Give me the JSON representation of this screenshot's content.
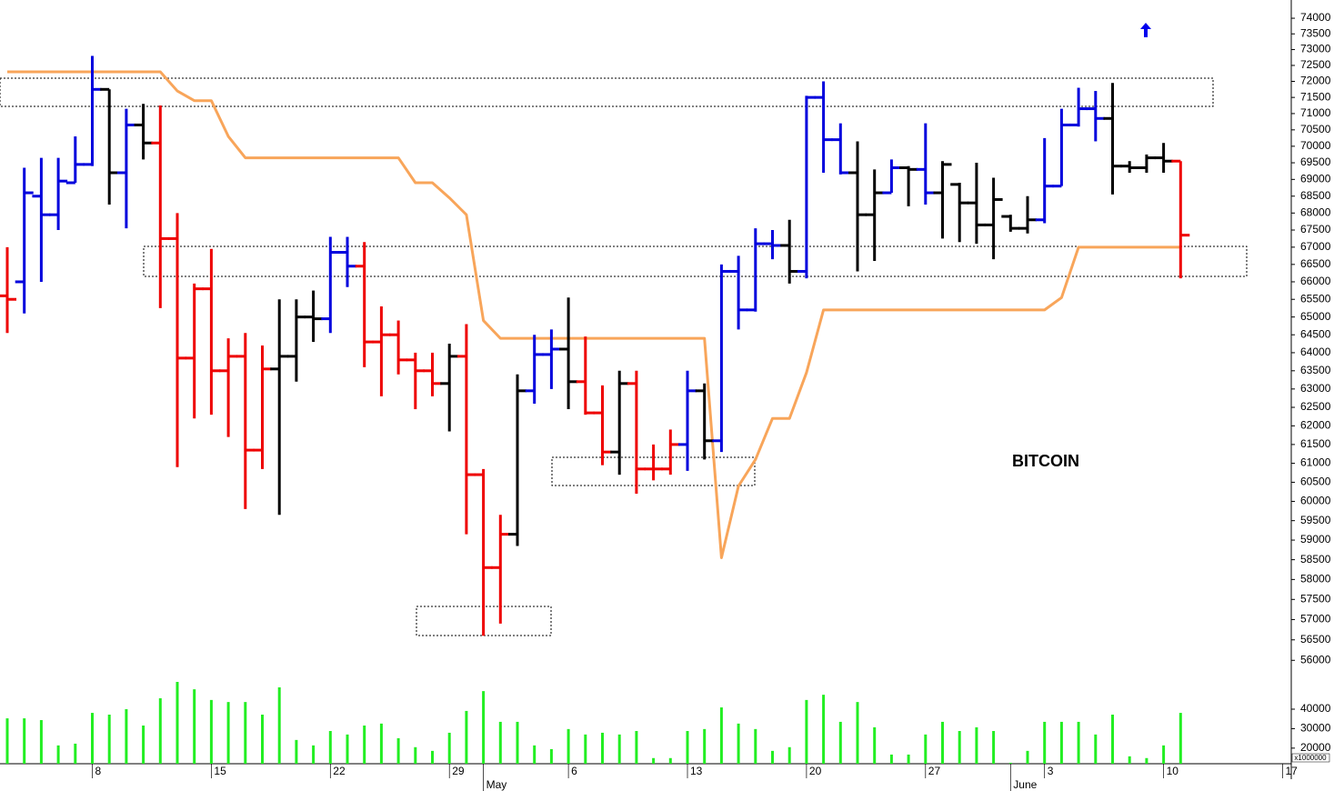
{
  "chart_data": {
    "type": "ohlc",
    "annotation": "BITCOIN",
    "volume_unit": "x1000000",
    "log_scale": true,
    "ylim": [
      55500,
      74500
    ],
    "yticks": [
      56000,
      56500,
      57000,
      57500,
      58000,
      58500,
      59000,
      59500,
      60000,
      60500,
      61000,
      61500,
      62000,
      62500,
      63000,
      63500,
      64000,
      64500,
      65000,
      65500,
      66000,
      66500,
      67000,
      67500,
      68000,
      68500,
      69000,
      69500,
      70000,
      70500,
      71000,
      71500,
      72000,
      72500,
      73000,
      73500,
      74000
    ],
    "categories": [
      null,
      null,
      null,
      null,
      null,
      "8",
      null,
      null,
      null,
      null,
      null,
      null,
      "15",
      null,
      null,
      null,
      null,
      null,
      null,
      "22",
      null,
      null,
      null,
      null,
      null,
      null,
      "29",
      null,
      "May",
      null,
      null,
      null,
      null,
      "6",
      null,
      null,
      null,
      null,
      null,
      null,
      "13",
      null,
      null,
      null,
      null,
      null,
      null,
      "20",
      null,
      null,
      null,
      null,
      null,
      null,
      "27",
      null,
      null,
      null,
      null,
      "June",
      null,
      "3",
      null,
      null,
      null,
      null,
      null,
      null,
      "10",
      null,
      null,
      null,
      null,
      null,
      null,
      "17"
    ],
    "ohlc": {
      "open": [
        65600,
        66000,
        68500,
        67950,
        68900,
        69450,
        71750,
        69200,
        70650,
        70100,
        67250,
        63850,
        65800,
        63500,
        63900,
        61350,
        63550,
        63900,
        65000,
        64950,
        66850,
        66450,
        64300,
        64500,
        63800,
        63500,
        63150,
        63900,
        60700,
        58300,
        59150,
        62950,
        63950,
        64100,
        63200,
        62350,
        61300,
        63150,
        60850,
        60850,
        61500,
        62950,
        61600,
        66300,
        65200,
        67100,
        67050,
        66300,
        71500,
        70200,
        69200,
        67950,
        68600,
        69350,
        69300,
        68600,
        68850,
        68300,
        67650,
        67900,
        67550,
        67800,
        68800,
        70650,
        71150,
        70850,
        69400,
        69350,
        69650,
        69550,
        null,
        null,
        null,
        null,
        null,
        null
      ],
      "high": [
        67000,
        69350,
        69650,
        69650,
        70300,
        72800,
        71750,
        71150,
        71300,
        71250,
        68000,
        65950,
        66950,
        64400,
        64550,
        64200,
        65500,
        65500,
        65750,
        67300,
        67300,
        67150,
        65300,
        64900,
        64000,
        64000,
        64250,
        64800,
        60850,
        59650,
        63400,
        64500,
        64650,
        65550,
        64450,
        63100,
        63500,
        63500,
        61500,
        61900,
        63500,
        63150,
        66500,
        66750,
        67550,
        67500,
        67800,
        71550,
        72000,
        70700,
        70150,
        69300,
        69600,
        69400,
        70700,
        69550,
        68900,
        69500,
        69050,
        67950,
        68500,
        70250,
        71150,
        71800,
        71700,
        71950,
        69550,
        69750,
        70100,
        69550,
        null,
        null,
        null,
        null,
        null,
        null
      ],
      "low": [
        64550,
        65100,
        66000,
        67500,
        68900,
        69400,
        68250,
        67550,
        69600,
        65250,
        60900,
        62200,
        62300,
        61700,
        59800,
        60850,
        59650,
        63200,
        64300,
        64550,
        65850,
        63600,
        62800,
        63400,
        62450,
        62800,
        61850,
        59150,
        56600,
        56900,
        58850,
        62600,
        63000,
        62450,
        62300,
        60950,
        60700,
        60200,
        60550,
        60700,
        60800,
        61100,
        61300,
        64650,
        65150,
        66650,
        65950,
        66100,
        69200,
        69150,
        66300,
        66600,
        68600,
        68200,
        68250,
        67250,
        67150,
        67100,
        66650,
        67450,
        67400,
        67700,
        68800,
        70600,
        70150,
        68550,
        69200,
        69200,
        69200,
        66100,
        null,
        null,
        null,
        null,
        null,
        null
      ],
      "close": [
        65500,
        68600,
        67950,
        68950,
        69450,
        71750,
        69200,
        70650,
        70100,
        67250,
        63850,
        65800,
        63500,
        63900,
        61350,
        63550,
        63900,
        65000,
        64950,
        66850,
        66450,
        64300,
        64500,
        63800,
        63500,
        63150,
        63900,
        60700,
        58300,
        59150,
        62950,
        63950,
        64100,
        63200,
        62350,
        61300,
        63150,
        60850,
        60850,
        61500,
        62950,
        61600,
        66300,
        65200,
        67100,
        67050,
        66300,
        71500,
        70200,
        69200,
        67950,
        68600,
        69350,
        69300,
        68600,
        69450,
        68300,
        67650,
        68400,
        67550,
        67800,
        68800,
        70650,
        71150,
        70850,
        69400,
        69350,
        69650,
        69550,
        67350,
        null,
        null,
        null,
        null,
        null,
        null
      ],
      "colors": [
        "#ee0000",
        "#0000dd",
        "#0000dd",
        "#0000dd",
        "#0000dd",
        "#0000dd",
        "#000000",
        "#0000dd",
        "#000000",
        "#ee0000",
        "#ee0000",
        "#ee0000",
        "#ee0000",
        "#ee0000",
        "#ee0000",
        "#ee0000",
        "#000000",
        "#000000",
        "#000000",
        "#0000dd",
        "#0000dd",
        "#ee0000",
        "#ee0000",
        "#ee0000",
        "#ee0000",
        "#ee0000",
        "#000000",
        "#ee0000",
        "#ee0000",
        "#ee0000",
        "#000000",
        "#0000dd",
        "#0000dd",
        "#000000",
        "#ee0000",
        "#ee0000",
        "#000000",
        "#ee0000",
        "#ee0000",
        "#ee0000",
        "#0000dd",
        "#000000",
        "#0000dd",
        "#0000dd",
        "#0000dd",
        "#0000dd",
        "#000000",
        "#0000dd",
        "#0000dd",
        "#0000dd",
        "#000000",
        "#000000",
        "#0000dd",
        "#000000",
        "#0000dd",
        "#000000",
        "#000000",
        "#000000",
        "#000000",
        "#000000",
        "#000000",
        "#0000dd",
        "#0000dd",
        "#0000dd",
        "#0000dd",
        "#000000",
        "#000000",
        "#000000",
        "#000000",
        "#ee0000",
        null,
        null,
        null,
        null,
        null,
        null
      ]
    },
    "stop_line": {
      "color": "#f8a55a",
      "values": [
        72300,
        72300,
        72300,
        72300,
        72300,
        72300,
        72300,
        72300,
        72300,
        72300,
        71700,
        71400,
        71400,
        70300,
        69650,
        69650,
        69650,
        69650,
        69650,
        69650,
        69650,
        69650,
        69650,
        69650,
        68900,
        68900,
        68450,
        67950,
        64900,
        64400,
        64400,
        64400,
        64400,
        64400,
        64400,
        64400,
        64400,
        64400,
        64400,
        64400,
        64400,
        64400,
        58550,
        60400,
        61100,
        62200,
        62200,
        63450,
        65200,
        65200,
        65200,
        65200,
        65200,
        65200,
        65200,
        65200,
        65200,
        65200,
        65200,
        65200,
        65200,
        65200,
        65550,
        67000,
        67000,
        67000,
        67000,
        67000,
        67000,
        67000,
        null,
        null,
        null,
        null,
        null,
        null
      ]
    },
    "volume": {
      "color": "#22ee22",
      "ylim": [
        12000,
        54000
      ],
      "yticks": [
        40000,
        30000,
        20000
      ],
      "values": [
        35300,
        35300,
        34400,
        21400,
        22300,
        38100,
        37200,
        40000,
        31600,
        45600,
        54000,
        50200,
        44700,
        43700,
        43700,
        37200,
        51200,
        24200,
        21400,
        28800,
        27000,
        31600,
        32600,
        25100,
        20500,
        18600,
        27900,
        39100,
        49300,
        33500,
        33500,
        21400,
        19500,
        29800,
        27000,
        27900,
        27000,
        28800,
        14900,
        14900,
        28800,
        29800,
        40900,
        32600,
        29800,
        18600,
        20500,
        44700,
        47400,
        33500,
        43700,
        30700,
        16700,
        16700,
        27000,
        33500,
        28800,
        30700,
        28800,
        12500,
        18600,
        33500,
        33500,
        33500,
        27000,
        37200,
        15800,
        14900,
        21400,
        38100,
        null,
        null,
        null,
        null,
        null,
        null
      ]
    }
  }
}
